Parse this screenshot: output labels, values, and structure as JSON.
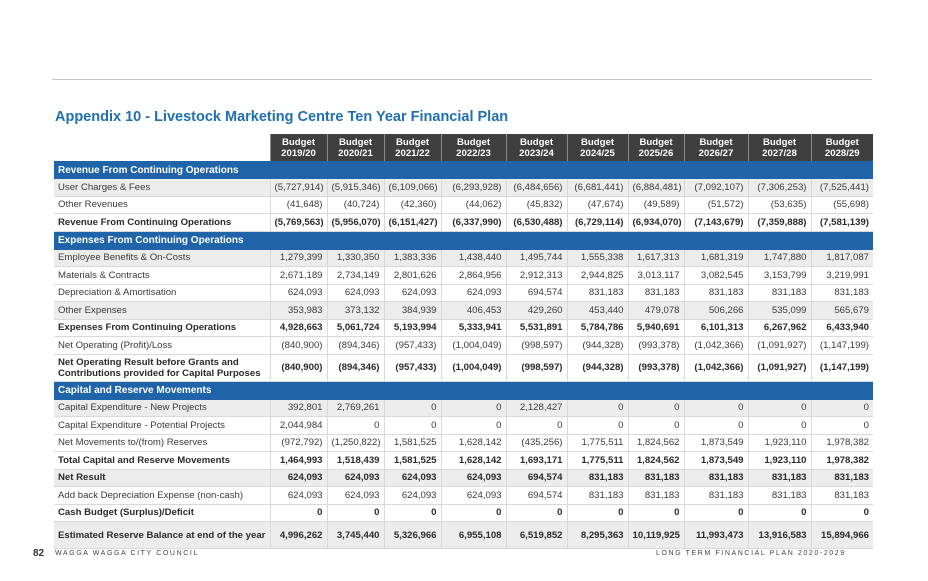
{
  "title": "Appendix 10 - Livestock Marketing Centre Ten Year Financial Plan",
  "columns": [
    {
      "top": "Budget",
      "year": "2019/20"
    },
    {
      "top": "Budget",
      "year": "2020/21"
    },
    {
      "top": "Budget",
      "year": "2021/22"
    },
    {
      "top": "Budget",
      "year": "2022/23"
    },
    {
      "top": "Budget",
      "year": "2023/24"
    },
    {
      "top": "Budget",
      "year": "2024/25"
    },
    {
      "top": "Budget",
      "year": "2025/26"
    },
    {
      "top": "Budget",
      "year": "2026/27"
    },
    {
      "top": "Budget",
      "year": "2027/28"
    },
    {
      "top": "Budget",
      "year": "2028/29"
    }
  ],
  "sections": [
    {
      "heading": "Revenue From Continuing Operations",
      "rows": [
        {
          "label": "User Charges & Fees",
          "bold": false,
          "shade": true,
          "tall": false,
          "values": [
            "(5,727,914)",
            "(5,915,346)",
            "(6,109,066)",
            "(6,293,928)",
            "(6,484,656)",
            "(6,681,441)",
            "(6,884,481)",
            "(7,092,107)",
            "(7,306,253)",
            "(7,525,441)"
          ]
        },
        {
          "label": "Other Revenues",
          "bold": false,
          "shade": false,
          "tall": false,
          "values": [
            "(41,648)",
            "(40,724)",
            "(42,360)",
            "(44,062)",
            "(45,832)",
            "(47,674)",
            "(49,589)",
            "(51,572)",
            "(53,635)",
            "(55,698)"
          ]
        },
        {
          "label": "Revenue From Continuing Operations",
          "bold": true,
          "shade": false,
          "tall": false,
          "values": [
            "(5,769,563)",
            "(5,956,070)",
            "(6,151,427)",
            "(6,337,990)",
            "(6,530,488)",
            "(6,729,114)",
            "(6,934,070)",
            "(7,143,679)",
            "(7,359,888)",
            "(7,581,139)"
          ]
        }
      ]
    },
    {
      "heading": "Expenses From Continuing Operations",
      "rows": [
        {
          "label": "Employee Benefits & On-Costs",
          "bold": false,
          "shade": true,
          "tall": false,
          "values": [
            "1,279,399",
            "1,330,350",
            "1,383,336",
            "1,438,440",
            "1,495,744",
            "1,555,338",
            "1,617,313",
            "1,681,319",
            "1,747,880",
            "1,817,087"
          ]
        },
        {
          "label": "Materials & Contracts",
          "bold": false,
          "shade": false,
          "tall": false,
          "values": [
            "2,671,189",
            "2,734,149",
            "2,801,626",
            "2,864,956",
            "2,912,313",
            "2,944,825",
            "3,013,117",
            "3,082,545",
            "3,153,799",
            "3,219,991"
          ]
        },
        {
          "label": "Depreciation & Amortisation",
          "bold": false,
          "shade": false,
          "tall": false,
          "values": [
            "624,093",
            "624,093",
            "624,093",
            "624,093",
            "694,574",
            "831,183",
            "831,183",
            "831,183",
            "831,183",
            "831,183"
          ]
        },
        {
          "label": "Other Expenses",
          "bold": false,
          "shade": true,
          "tall": false,
          "values": [
            "353,983",
            "373,132",
            "384,939",
            "406,453",
            "429,260",
            "453,440",
            "479,078",
            "506,266",
            "535,099",
            "565,679"
          ]
        },
        {
          "label": "Expenses From Continuing Operations",
          "bold": true,
          "shade": false,
          "tall": false,
          "values": [
            "4,928,663",
            "5,061,724",
            "5,193,994",
            "5,333,941",
            "5,531,891",
            "5,784,786",
            "5,940,691",
            "6,101,313",
            "6,267,962",
            "6,433,940"
          ]
        },
        {
          "label": "Net Operating (Profit)/Loss",
          "bold": false,
          "shade": false,
          "tall": false,
          "values": [
            "(840,900)",
            "(894,346)",
            "(957,433)",
            "(1,004,049)",
            "(998,597)",
            "(944,328)",
            "(993,378)",
            "(1,042,366)",
            "(1,091,927)",
            "(1,147,199)"
          ]
        },
        {
          "label": "Net Operating Result before Grants and Contributions provided for Capital Purposes",
          "bold": true,
          "shade": false,
          "tall": true,
          "values": [
            "(840,900)",
            "(894,346)",
            "(957,433)",
            "(1,004,049)",
            "(998,597)",
            "(944,328)",
            "(993,378)",
            "(1,042,366)",
            "(1,091,927)",
            "(1,147,199)"
          ]
        }
      ]
    },
    {
      "heading": "Capital and Reserve Movements",
      "rows": [
        {
          "label": "Capital Expenditure - New Projects",
          "bold": false,
          "shade": true,
          "tall": false,
          "values": [
            "392,801",
            "2,769,261",
            "0",
            "0",
            "2,128,427",
            "0",
            "0",
            "0",
            "0",
            "0"
          ]
        },
        {
          "label": "Capital Expenditure - Potential Projects",
          "bold": false,
          "shade": false,
          "tall": false,
          "values": [
            "2,044,984",
            "0",
            "0",
            "0",
            "0",
            "0",
            "0",
            "0",
            "0",
            "0"
          ]
        },
        {
          "label": "Net Movements to/(from) Reserves",
          "bold": false,
          "shade": false,
          "tall": false,
          "values": [
            "(972,792)",
            "(1,250,822)",
            "1,581,525",
            "1,628,142",
            "(435,256)",
            "1,775,511",
            "1,824,562",
            "1,873,549",
            "1,923,110",
            "1,978,382"
          ]
        },
        {
          "label": "Total Capital and Reserve Movements",
          "bold": true,
          "shade": false,
          "tall": false,
          "values": [
            "1,464,993",
            "1,518,439",
            "1,581,525",
            "1,628,142",
            "1,693,171",
            "1,775,511",
            "1,824,562",
            "1,873,549",
            "1,923,110",
            "1,978,382"
          ]
        },
        {
          "label": "Net Result",
          "bold": true,
          "shade": true,
          "tall": false,
          "values": [
            "624,093",
            "624,093",
            "624,093",
            "624,093",
            "694,574",
            "831,183",
            "831,183",
            "831,183",
            "831,183",
            "831,183"
          ]
        },
        {
          "label": "Add back Depreciation Expense (non-cash)",
          "bold": false,
          "shade": false,
          "tall": false,
          "values": [
            "624,093",
            "624,093",
            "624,093",
            "624,093",
            "694,574",
            "831,183",
            "831,183",
            "831,183",
            "831,183",
            "831,183"
          ]
        },
        {
          "label": "Cash Budget (Surplus)/Deficit",
          "bold": true,
          "shade": false,
          "tall": false,
          "values": [
            "0",
            "0",
            "0",
            "0",
            "0",
            "0",
            "0",
            "0",
            "0",
            "0"
          ]
        },
        {
          "label": "Estimated Reserve Balance at end of the year",
          "bold": true,
          "shade": true,
          "tall": true,
          "values": [
            "4,996,262",
            "3,745,440",
            "5,326,966",
            "6,955,108",
            "6,519,852",
            "8,295,363",
            "10,119,925",
            "11,993,473",
            "13,916,583",
            "15,894,966"
          ]
        }
      ]
    }
  ],
  "footer": {
    "page_number": "82",
    "org": "WAGGA WAGGA CITY COUNCIL",
    "doc": "LONG TERM FINANCIAL PLAN 2020-2029"
  }
}
